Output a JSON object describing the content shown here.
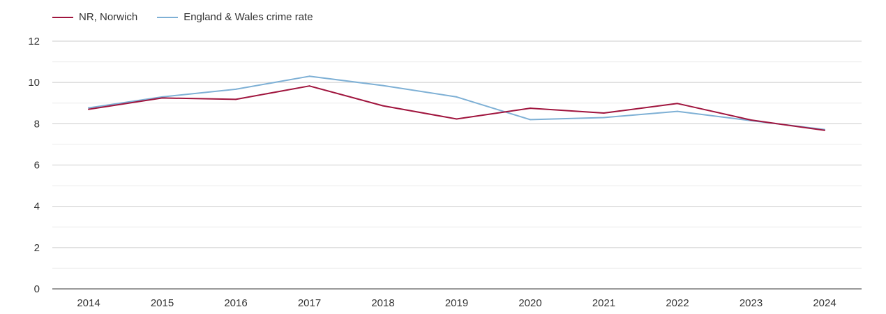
{
  "chart_data": {
    "type": "line",
    "title": "",
    "xlabel": "",
    "ylabel": "",
    "categories": [
      "2014",
      "2015",
      "2016",
      "2017",
      "2018",
      "2019",
      "2020",
      "2021",
      "2022",
      "2023",
      "2024"
    ],
    "ylim": [
      0,
      12
    ],
    "yticks": [
      0,
      2,
      4,
      6,
      8,
      10,
      12
    ],
    "grid": true,
    "legend_position": "top-left",
    "series": [
      {
        "name": "NR, Norwich",
        "color": "#a0153e",
        "values": [
          8.7,
          9.25,
          9.18,
          9.83,
          8.87,
          8.23,
          8.75,
          8.52,
          8.98,
          8.18,
          7.68
        ]
      },
      {
        "name": "England & Wales crime rate",
        "color": "#7eb0d5",
        "values": [
          8.77,
          9.3,
          9.67,
          10.3,
          9.85,
          9.3,
          8.2,
          8.3,
          8.6,
          8.15,
          7.72
        ]
      }
    ]
  }
}
